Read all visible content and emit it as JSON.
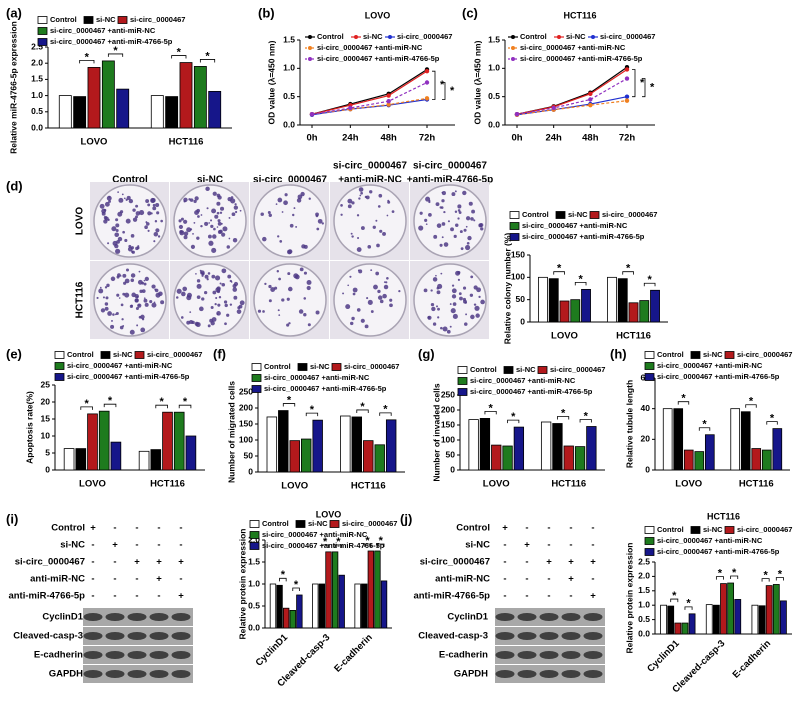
{
  "chart_data": [
    {
      "panel": "(a)",
      "type": "bar",
      "y_label": "Relative miR-4766-5p expression",
      "categories": [
        "LOVO",
        "HCT116"
      ],
      "series": [
        {
          "name": "Control",
          "color": "#ffffff",
          "values": [
            1.0,
            1.0
          ]
        },
        {
          "name": "si-NC",
          "color": "#000000",
          "values": [
            0.97,
            0.97
          ]
        },
        {
          "name": "si-circ_0000467",
          "color": "#b3191c",
          "values": [
            1.87,
            2.02
          ]
        },
        {
          "name": "si-circ_0000467 +anti-miR-NC",
          "color": "#1e7b1e",
          "values": [
            2.07,
            1.9
          ]
        },
        {
          "name": "si-circ_0000467 +anti-miR-4766-5p",
          "color": "#16168a",
          "values": [
            1.2,
            1.13
          ]
        }
      ],
      "ylim": [
        0,
        2.5
      ],
      "yticks": [
        {
          "value": 0,
          "label": "0.0"
        },
        0.5,
        {
          "value": 1,
          "label": "1.0"
        },
        1.5,
        {
          "value": 2,
          "label": "2.0"
        },
        2.5
      ],
      "sig_label": "*"
    },
    {
      "panel": "(b)",
      "type": "line",
      "title": "LOVO",
      "y_label": "OD value (λ=450 nm)",
      "categories": [
        "0h",
        "24h",
        "48h",
        "72h"
      ],
      "series": [
        {
          "name": "Control",
          "color": "#000000",
          "values": [
            0.19,
            0.37,
            0.55,
            0.98
          ]
        },
        {
          "name": "si-NC",
          "color": "#e02020",
          "values": [
            0.19,
            0.35,
            0.52,
            0.95
          ]
        },
        {
          "name": "si-circ_0000467",
          "color": "#2030d0",
          "values": [
            0.18,
            0.28,
            0.35,
            0.45
          ]
        },
        {
          "name": "si-circ_0000467 +anti-miR-NC",
          "color": "#f08020",
          "dashed": true,
          "values": [
            0.19,
            0.28,
            0.36,
            0.47
          ]
        },
        {
          "name": "si-circ_0000467 +anti-miR-4766-5p",
          "color": "#9030c0",
          "dashed": true,
          "values": [
            0.19,
            0.3,
            0.42,
            0.75
          ]
        }
      ],
      "ylim": [
        0,
        1.5
      ],
      "yticks": [
        {
          "value": 0,
          "label": "0.0"
        },
        0.5,
        {
          "value": 1,
          "label": "1.0"
        },
        1.5
      ],
      "sig_label": "*"
    },
    {
      "panel": "(c)",
      "type": "line",
      "title": "HCT116",
      "y_label": "OD value (λ=450 nm)",
      "categories": [
        "0h",
        "24h",
        "48h",
        "72h"
      ],
      "series": [
        {
          "name": "Control",
          "color": "#000000",
          "values": [
            0.19,
            0.33,
            0.57,
            1.02
          ]
        },
        {
          "name": "si-NC",
          "color": "#e02020",
          "values": [
            0.19,
            0.32,
            0.55,
            0.98
          ]
        },
        {
          "name": "si-circ_0000467",
          "color": "#2030d0",
          "values": [
            0.18,
            0.27,
            0.37,
            0.5
          ]
        },
        {
          "name": "si-circ_0000467 +anti-miR-NC",
          "color": "#f08020",
          "dashed": true,
          "values": [
            0.18,
            0.27,
            0.35,
            0.43
          ]
        },
        {
          "name": "si-circ_0000467 +anti-miR-4766-5p",
          "color": "#9030c0",
          "dashed": true,
          "values": [
            0.19,
            0.3,
            0.45,
            0.82
          ]
        }
      ],
      "ylim": [
        0,
        1.5
      ],
      "yticks": [
        {
          "value": 0,
          "label": "0.0"
        },
        0.5,
        {
          "value": 1,
          "label": "1.0"
        },
        1.5
      ],
      "sig_label": "*"
    },
    {
      "panel": "(d)",
      "type": "bar",
      "y_label": "Relative colony number (%)",
      "categories": [
        "LOVO",
        "HCT116"
      ],
      "series": [
        {
          "name": "Control",
          "color": "#ffffff",
          "values": [
            100,
            100
          ]
        },
        {
          "name": "si-NC",
          "color": "#000000",
          "values": [
            97,
            97
          ]
        },
        {
          "name": "si-circ_0000467",
          "color": "#b3191c",
          "values": [
            47,
            43
          ]
        },
        {
          "name": "si-circ_0000467 +anti-miR-NC",
          "color": "#1e7b1e",
          "values": [
            50,
            48
          ]
        },
        {
          "name": "si-circ_0000467 +anti-miR-4766-5p",
          "color": "#16168a",
          "values": [
            73,
            71
          ]
        }
      ],
      "ylim": [
        0,
        150
      ],
      "yticks": [
        0,
        50,
        100,
        150
      ],
      "sig_label": "*"
    },
    {
      "panel": "(e)",
      "type": "bar",
      "y_label": "Apoptosis rate(%)",
      "categories": [
        "LOVO",
        "HCT116"
      ],
      "series": [
        {
          "name": "Control",
          "color": "#ffffff",
          "values": [
            6.3,
            5.5
          ]
        },
        {
          "name": "si-NC",
          "color": "#000000",
          "values": [
            6.3,
            6
          ]
        },
        {
          "name": "si-circ_0000467",
          "color": "#b3191c",
          "values": [
            16.5,
            17
          ]
        },
        {
          "name": "si-circ_0000467 +anti-miR-NC",
          "color": "#1e7b1e",
          "values": [
            17.3,
            17
          ]
        },
        {
          "name": "si-circ_0000467 +anti-miR-4766-5p",
          "color": "#16168a",
          "values": [
            8.2,
            10
          ]
        }
      ],
      "ylim": [
        0,
        25
      ],
      "yticks": [
        0,
        5,
        10,
        15,
        20,
        25
      ],
      "sig_label": "*"
    },
    {
      "panel": "(f)",
      "type": "bar",
      "y_label": "Number of migrated cells",
      "categories": [
        "LOVO",
        "HCT116"
      ],
      "series": [
        {
          "name": "Control",
          "color": "#ffffff",
          "values": [
            172,
            175
          ]
        },
        {
          "name": "si-NC",
          "color": "#000000",
          "values": [
            192,
            172
          ]
        },
        {
          "name": "si-circ_0000467",
          "color": "#b3191c",
          "values": [
            98,
            98
          ]
        },
        {
          "name": "si-circ_0000467 +anti-miR-NC",
          "color": "#1e7b1e",
          "values": [
            103,
            85
          ]
        },
        {
          "name": "si-circ_0000467 +anti-miR-4766-5p",
          "color": "#16168a",
          "values": [
            162,
            163
          ]
        }
      ],
      "ylim": [
        0,
        250
      ],
      "yticks": [
        0,
        50,
        100,
        150,
        200,
        250
      ],
      "sig_label": "*"
    },
    {
      "panel": "(g)",
      "type": "bar",
      "y_label": "Number of invaded cells",
      "categories": [
        "LOVO",
        "HCT116"
      ],
      "series": [
        {
          "name": "Control",
          "color": "#ffffff",
          "values": [
            168,
            160
          ]
        },
        {
          "name": "si-NC",
          "color": "#000000",
          "values": [
            172,
            155
          ]
        },
        {
          "name": "si-circ_0000467",
          "color": "#b3191c",
          "values": [
            83,
            80
          ]
        },
        {
          "name": "si-circ_0000467 +anti-miR-NC",
          "color": "#1e7b1e",
          "values": [
            80,
            78
          ]
        },
        {
          "name": "si-circ_0000467 +anti-miR-4766-5p",
          "color": "#16168a",
          "values": [
            143,
            145
          ]
        }
      ],
      "ylim": [
        0,
        250
      ],
      "yticks": [
        0,
        50,
        100,
        150,
        200,
        250
      ],
      "sig_label": "*"
    },
    {
      "panel": "(h)",
      "type": "bar",
      "y_label": "Relative tubule length",
      "categories": [
        "LOVO",
        "HCT116"
      ],
      "series": [
        {
          "name": "Control",
          "color": "#ffffff",
          "values": [
            40,
            40
          ]
        },
        {
          "name": "si-NC",
          "color": "#000000",
          "values": [
            40,
            38
          ]
        },
        {
          "name": "si-circ_0000467",
          "color": "#b3191c",
          "values": [
            13,
            14
          ]
        },
        {
          "name": "si-circ_0000467 +anti-miR-NC",
          "color": "#1e7b1e",
          "values": [
            12,
            13
          ]
        },
        {
          "name": "si-circ_0000467 +anti-miR-4766-5p",
          "color": "#16168a",
          "values": [
            23,
            27
          ]
        }
      ],
      "ylim": [
        0,
        60
      ],
      "yticks": [
        0,
        20,
        40,
        60
      ],
      "sig_label": "*"
    },
    {
      "panel": "(i)",
      "type": "bar",
      "title": "LOVO",
      "y_label": "Relative protein expression",
      "categories": [
        "CyclinD1",
        "Cleaved-casp-3",
        "E-cadherin"
      ],
      "x_label_rotation": -45,
      "series": [
        {
          "name": "Control",
          "color": "#ffffff",
          "values": [
            1.0,
            1.0,
            1.0
          ]
        },
        {
          "name": "si-NC",
          "color": "#000000",
          "values": [
            0.97,
            1.0,
            1.0
          ]
        },
        {
          "name": "si-circ_0000467",
          "color": "#b3191c",
          "values": [
            0.45,
            1.73,
            1.75
          ]
        },
        {
          "name": "si-circ_0000467 +anti-miR-NC",
          "color": "#1e7b1e",
          "values": [
            0.4,
            1.73,
            1.75
          ]
        },
        {
          "name": "si-circ_0000467 +anti-miR-4766-5p",
          "color": "#16168a",
          "values": [
            0.75,
            1.2,
            1.07
          ]
        }
      ],
      "ylim": [
        0,
        2
      ],
      "yticks": [
        {
          "value": 0,
          "label": "0.0"
        },
        0.5,
        {
          "value": 1,
          "label": "1.0"
        },
        1.5,
        {
          "value": 2,
          "label": "2.0"
        }
      ],
      "sig_label": "*"
    },
    {
      "panel": "(j)",
      "type": "bar",
      "title": "HCT116",
      "y_label": "Relative protein expression",
      "categories": [
        "CyclinD1",
        "Cleaved-casp-3",
        "E-cadherin"
      ],
      "x_label_rotation": -45,
      "series": [
        {
          "name": "Control",
          "color": "#ffffff",
          "values": [
            1.0,
            1.02,
            1.0
          ]
        },
        {
          "name": "si-NC",
          "color": "#000000",
          "values": [
            0.97,
            1.0,
            0.98
          ]
        },
        {
          "name": "si-circ_0000467",
          "color": "#b3191c",
          "values": [
            0.38,
            1.75,
            1.68
          ]
        },
        {
          "name": "si-circ_0000467 +anti-miR-NC",
          "color": "#1e7b1e",
          "values": [
            0.38,
            1.77,
            1.72
          ]
        },
        {
          "name": "si-circ_0000467 +anti-miR-4766-5p",
          "color": "#16168a",
          "values": [
            0.7,
            1.2,
            1.15
          ]
        }
      ],
      "ylim": [
        0,
        2.5
      ],
      "yticks": [
        {
          "value": 0,
          "label": "0.0"
        },
        0.5,
        {
          "value": 1,
          "label": "1.0"
        },
        1.5,
        {
          "value": 2,
          "label": "2.0"
        },
        2.5
      ],
      "sig_label": "*"
    }
  ],
  "colony_images": {
    "columns": [
      [
        "Control"
      ],
      [
        "si-NC"
      ],
      [
        "si-circ_0000467"
      ],
      [
        "si-circ_0000467",
        "+anti-miR-NC"
      ],
      [
        "si-circ_0000467",
        "+anti-miR-4766-5p"
      ]
    ],
    "rows": [
      "LOVO",
      "HCT116"
    ]
  },
  "blots": [
    {
      "treatments": [
        "Control",
        "si-NC",
        "si-circ_0000467",
        "anti-miR-NC",
        "anti-miR-4766-5p"
      ],
      "signs": [
        [
          "+",
          "-",
          "-",
          "-",
          "-"
        ],
        [
          "-",
          "+",
          "-",
          "-",
          "-"
        ],
        [
          "-",
          "-",
          "+",
          "+",
          "+"
        ],
        [
          "-",
          "-",
          "-",
          "+",
          "-"
        ],
        [
          "-",
          "-",
          "-",
          "-",
          "+"
        ]
      ],
      "proteins": [
        "CyclinD1",
        "Cleaved-casp-3",
        "E-cadherin",
        "GAPDH"
      ]
    },
    {
      "treatments": [
        "Control",
        "si-NC",
        "si-circ_0000467",
        "anti-miR-NC",
        "anti-miR-4766-5p"
      ],
      "signs": [
        [
          "+",
          "-",
          "-",
          "-",
          "-"
        ],
        [
          "-",
          "+",
          "-",
          "-",
          "-"
        ],
        [
          "-",
          "-",
          "+",
          "+",
          "+"
        ],
        [
          "-",
          "-",
          "-",
          "+",
          "-"
        ],
        [
          "-",
          "-",
          "-",
          "-",
          "+"
        ]
      ],
      "proteins": [
        "CyclinD1",
        "Cleaved-casp-3",
        "E-cadherin",
        "GAPDH"
      ]
    }
  ]
}
